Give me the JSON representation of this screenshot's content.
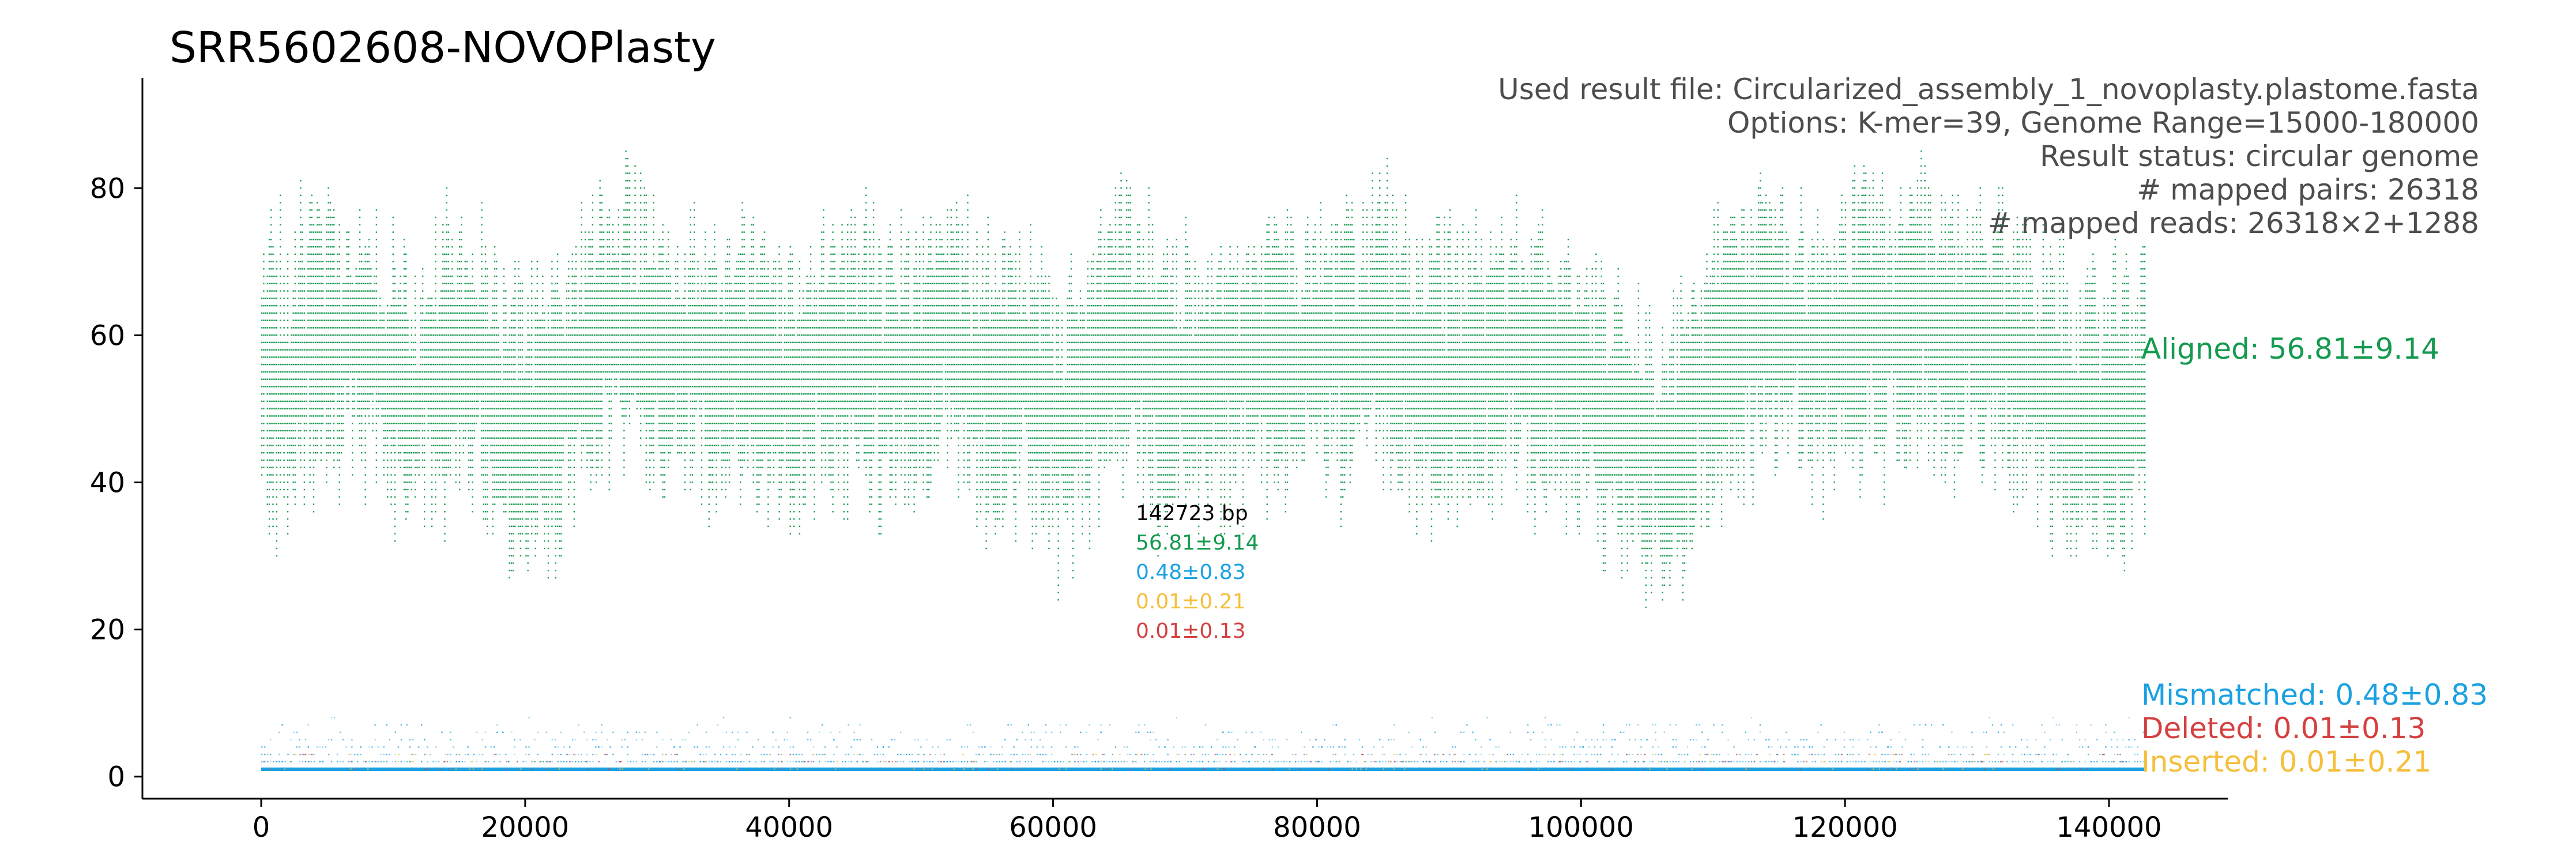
{
  "chart_data": {
    "type": "scatter",
    "title": "SRR5602608-NOVOPlasty",
    "xlabel": "",
    "ylabel": "",
    "xlim": [
      -9000,
      149000
    ],
    "ylim": [
      -3,
      95
    ],
    "xticks": [
      0,
      20000,
      40000,
      60000,
      80000,
      100000,
      120000,
      140000
    ],
    "yticks": [
      0,
      20,
      40,
      60,
      80
    ],
    "xtick_labels": [
      "0",
      "20000",
      "40000",
      "60000",
      "80000",
      "100000",
      "120000",
      "140000"
    ],
    "ytick_labels": [
      "0",
      "20",
      "40",
      "60",
      "80"
    ],
    "genome_length_bp": 142723,
    "grid": false,
    "info_lines": [
      "Used result file: Circularized_assembly_1_novoplasty.plastome.fasta",
      "Options: K-mer=39, Genome Range=15000-180000",
      "Result status: circular genome",
      "# mapped pairs: 26318",
      "# mapped reads: 26318×2+1288"
    ],
    "stats_box": {
      "length": "142723 bp",
      "aligned": "56.81±9.14",
      "mismatched": "0.48±0.83",
      "inserted": "0.01±0.21",
      "deleted": "0.01±0.13"
    },
    "series": [
      {
        "name": "Aligned",
        "label": "Aligned: 56.81±9.14",
        "color": "#159a4f",
        "mean": 56.81,
        "sd": 9.14,
        "profile_x": [
          0,
          2000,
          4000,
          6000,
          8000,
          10000,
          12000,
          14000,
          16000,
          18000,
          20000,
          22000,
          24000,
          26000,
          28000,
          30000,
          32000,
          34000,
          36000,
          38000,
          40000,
          42000,
          44000,
          46000,
          48000,
          50000,
          52000,
          54000,
          56000,
          58000,
          60000,
          62000,
          64000,
          66000,
          68000,
          70000,
          72000,
          74000,
          76000,
          78000,
          80000,
          82000,
          84000,
          86000,
          88000,
          90000,
          92000,
          94000,
          96000,
          98000,
          100000,
          102000,
          104000,
          106000,
          108000,
          110000,
          112000,
          114000,
          116000,
          118000,
          120000,
          122000,
          124000,
          126000,
          128000,
          130000,
          132000,
          134000,
          136000,
          138000,
          140000,
          142000
        ],
        "profile_y": [
          55,
          54,
          60,
          58,
          57,
          55,
          52,
          56,
          58,
          50,
          47,
          50,
          55,
          62,
          64,
          56,
          57,
          56,
          57,
          54,
          52,
          56,
          57,
          56,
          55,
          56,
          60,
          55,
          53,
          54,
          48,
          50,
          58,
          60,
          52,
          54,
          56,
          55,
          57,
          57,
          60,
          58,
          62,
          58,
          56,
          55,
          56,
          57,
          56,
          55,
          54,
          50,
          47,
          44,
          48,
          55,
          58,
          62,
          60,
          58,
          60,
          63,
          60,
          62,
          58,
          60,
          58,
          56,
          53,
          48,
          50,
          52
        ]
      },
      {
        "name": "Mismatched",
        "label": "Mismatched: 0.48±0.83",
        "color": "#1ba1e2",
        "mean": 0.48,
        "sd": 0.83
      },
      {
        "name": "Deleted",
        "label": "Deleted: 0.01±0.13",
        "color": "#d44040",
        "mean": 0.01,
        "sd": 0.13
      },
      {
        "name": "Inserted",
        "label": "Inserted: 0.01±0.21",
        "color": "#f5bf3c",
        "mean": 0.01,
        "sd": 0.21
      }
    ],
    "axis_color": "#000000",
    "info_color": "#4d4d4d"
  }
}
